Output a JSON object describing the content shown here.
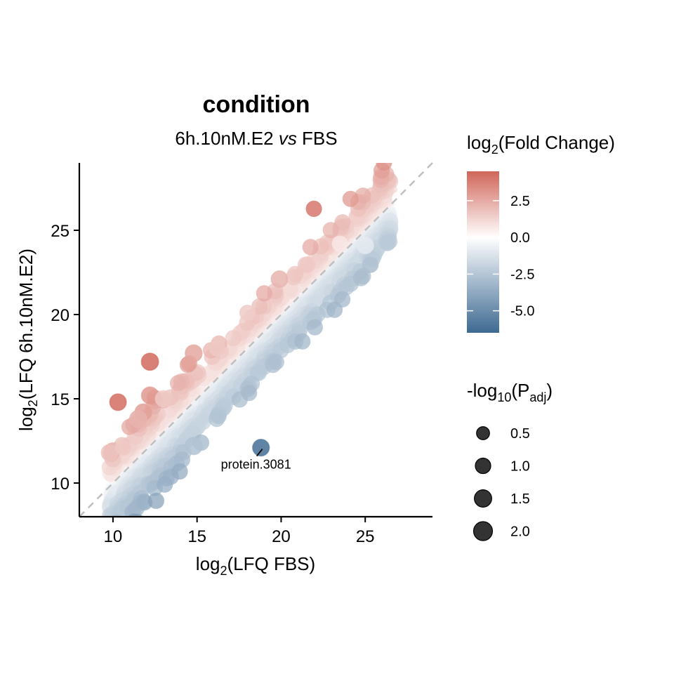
{
  "chart_data": {
    "type": "scatter",
    "title": "condition",
    "subtitle": {
      "prefix": "6h.10nM.E2 ",
      "italic": "vs",
      "suffix": " FBS"
    },
    "xlabel": {
      "pre": "log",
      "sub": "2",
      "post": "(LFQ FBS)"
    },
    "ylabel": {
      "pre": "log",
      "sub": "2",
      "post": "(LFQ 6h.10nM.E2)"
    },
    "xlim": [
      8,
      29
    ],
    "ylim": [
      8,
      29
    ],
    "x_ticks": [
      10,
      15,
      20,
      25
    ],
    "y_ticks": [
      10,
      15,
      20,
      25
    ],
    "x_tick_labels": [
      "10",
      "15",
      "20",
      "25"
    ],
    "y_tick_labels": [
      "10",
      "15",
      "20",
      "25"
    ],
    "grid": false,
    "reference_line": {
      "type": "identity",
      "style": "dashed",
      "color": "#bfbfbf"
    },
    "color_scale": {
      "title": {
        "pre": "log",
        "sub": "2",
        "post": "(Fold Change)"
      },
      "range": [
        -6.5,
        4.5
      ],
      "low": "#3e6a92",
      "mid": "#ffffff",
      "high": "#d0665a",
      "breaks": [
        2.5,
        0.0,
        -2.5,
        -5.0
      ],
      "labels": [
        "2.5",
        "0.0",
        "-2.5",
        "-5.0"
      ]
    },
    "size_scale": {
      "title": {
        "pre": "-log",
        "sub": "10",
        "post": "(P",
        "sub2": "adj",
        "post2": ")"
      },
      "breaks": [
        0.5,
        1.0,
        1.5,
        2.0
      ],
      "labels": [
        "0.5",
        "1.0",
        "1.5",
        "2.0"
      ],
      "range": [
        0,
        2.2
      ]
    },
    "points": [
      {
        "x": 10.3,
        "y": 14.8,
        "fc": 4.3,
        "p": 1.3
      },
      {
        "x": 12.2,
        "y": 17.2,
        "fc": 4.4,
        "p": 1.45
      },
      {
        "x": 12.2,
        "y": 15.2,
        "fc": 3.0,
        "p": 1.4
      },
      {
        "x": 11.8,
        "y": 14.2,
        "fc": 2.8,
        "p": 1.35
      },
      {
        "x": 11.5,
        "y": 13.8,
        "fc": 2.2,
        "p": 1.5
      },
      {
        "x": 9.8,
        "y": 11.8,
        "fc": 1.8,
        "p": 1.3
      },
      {
        "x": 10.6,
        "y": 12.1,
        "fc": 1.6,
        "p": 1.0
      },
      {
        "x": 14.8,
        "y": 17.7,
        "fc": 2.6,
        "p": 1.4
      },
      {
        "x": 19.9,
        "y": 22.1,
        "fc": 2.2,
        "p": 1.3
      },
      {
        "x": 16.2,
        "y": 18.0,
        "fc": 1.6,
        "p": 1.1
      },
      {
        "x": 18.0,
        "y": 20.1,
        "fc": 1.5,
        "p": 1.0
      },
      {
        "x": 13.0,
        "y": 15.0,
        "fc": 1.6,
        "p": 1.2
      },
      {
        "x": 14.8,
        "y": 12.2,
        "fc": -2.6,
        "p": 1.5
      },
      {
        "x": 18.8,
        "y": 12.1,
        "fc": -6.3,
        "p": 1.3,
        "label": "protein.3081"
      },
      {
        "x": 25.0,
        "y": 24.1,
        "fc": -0.9,
        "p": 1.3
      },
      {
        "x": 23.5,
        "y": 24.2,
        "fc": 0.7,
        "p": 1.0
      },
      {
        "x": 27.0,
        "y": 26.9,
        "fc": 0.0,
        "p": 0.5
      }
    ],
    "cloud": {
      "n": 1800,
      "x_range": [
        9.8,
        26.5
      ],
      "sd_residual": 0.9,
      "offset": -0.35,
      "seed": 7
    }
  }
}
